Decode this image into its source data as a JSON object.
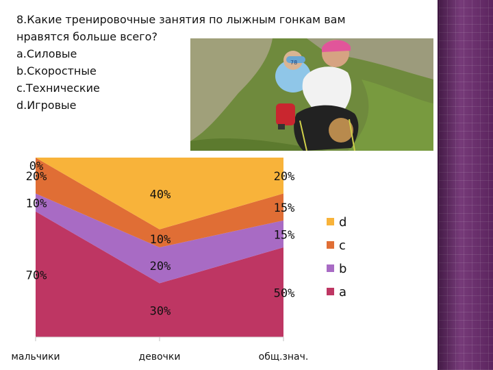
{
  "question": {
    "title_line1": "8.Какие тренировочные занятия по лыжным гонкам  вам",
    "title_line2": "нравятся больше всего?",
    "options": [
      "a.Силовые",
      "b.Скоростные",
      "c.Технические",
      "d.Игровые"
    ]
  },
  "photo": {
    "bib_number": "78"
  },
  "chart_data": {
    "type": "area",
    "stacked": true,
    "categories": [
      "мальчики",
      "девочки",
      "общ.знач."
    ],
    "series": [
      {
        "name": "a",
        "values": [
          70,
          30,
          50
        ],
        "labels": [
          "70%",
          "30%",
          "50%"
        ],
        "color": "#be3663"
      },
      {
        "name": "b",
        "values": [
          10,
          20,
          15
        ],
        "labels": [
          "10%",
          "20%",
          "15%"
        ],
        "color": "#a86bc4"
      },
      {
        "name": "c",
        "values": [
          20,
          10,
          15
        ],
        "labels": [
          "20%",
          "10%",
          "15%"
        ],
        "color": "#e06e35"
      },
      {
        "name": "d",
        "values": [
          0,
          40,
          20
        ],
        "labels": [
          "0%",
          "40%",
          "20%"
        ],
        "color": "#f8b33a"
      }
    ],
    "ylim": [
      0,
      100
    ],
    "legend_position": "right",
    "legend_order": [
      "d",
      "c",
      "b",
      "a"
    ]
  },
  "theme": {
    "sidebar_color": "#6b2a6e"
  }
}
